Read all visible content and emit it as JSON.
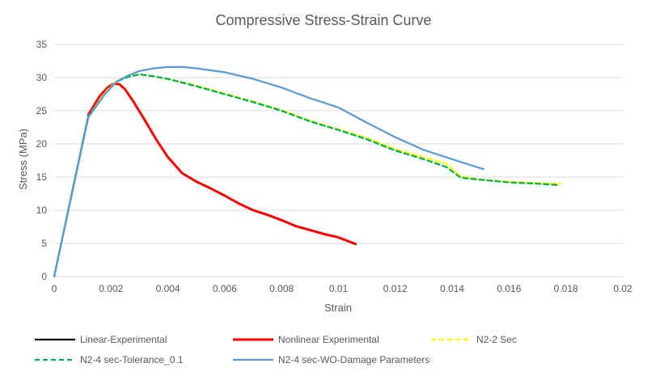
{
  "chart_data": {
    "type": "line",
    "title": "Compressive Stress-Strain Curve",
    "xlabel": "Strain",
    "ylabel": "Stress (MPa)",
    "xlim": [
      0,
      0.02
    ],
    "ylim": [
      0,
      35
    ],
    "grid": true,
    "legend_position": "bottom",
    "x_ticks": [
      0,
      0.002,
      0.004,
      0.006,
      0.008,
      0.01,
      0.012,
      0.014,
      0.016,
      0.018,
      0.02
    ],
    "x_tick_labels": [
      "0",
      "0.002",
      "0.004",
      "0.006",
      "0.008",
      "0.01",
      "0.012",
      "0.014",
      "0.016",
      "0.018",
      "0.02"
    ],
    "y_ticks": [
      0,
      5,
      10,
      15,
      20,
      25,
      30,
      35
    ],
    "y_tick_labels": [
      "0",
      "5",
      "10",
      "15",
      "20",
      "25",
      "30",
      "35"
    ],
    "series": [
      {
        "name": "Linear-Experimental",
        "color": "#000000",
        "style": "solid",
        "x": [
          0,
          0.0012
        ],
        "y": [
          0,
          24.2
        ]
      },
      {
        "name": "Nonlinear Experimental",
        "color": "#ff0000",
        "style": "solid",
        "x": [
          0.0012,
          0.0016,
          0.0019,
          0.0021,
          0.0023,
          0.0025,
          0.0028,
          0.0032,
          0.0036,
          0.004,
          0.0045,
          0.005,
          0.0055,
          0.006,
          0.0065,
          0.007,
          0.0075,
          0.008,
          0.0085,
          0.009,
          0.0095,
          0.01,
          0.0106
        ],
        "y": [
          24.4,
          27.2,
          28.6,
          29.1,
          29.0,
          28.2,
          26.3,
          23.5,
          20.6,
          18.0,
          15.6,
          14.3,
          13.3,
          12.2,
          11.0,
          10.0,
          9.3,
          8.5,
          7.6,
          7.0,
          6.4,
          5.9,
          4.9
        ]
      },
      {
        "name": "N2-2 Sec",
        "color": "#ffff00",
        "style": "dashed",
        "x": [
          0,
          0.0012,
          0.0018,
          0.0022,
          0.0026,
          0.003,
          0.0035,
          0.004,
          0.005,
          0.006,
          0.007,
          0.008,
          0.009,
          0.01,
          0.011,
          0.012,
          0.013,
          0.0138,
          0.0143,
          0.015,
          0.016,
          0.017,
          0.0178
        ],
        "y": [
          0,
          24.2,
          27.8,
          29.5,
          30.2,
          30.5,
          30.2,
          29.8,
          28.8,
          27.6,
          26.4,
          25.1,
          23.5,
          22.2,
          20.9,
          19.2,
          18.0,
          17.0,
          15.1,
          14.6,
          14.3,
          14.1,
          14.0
        ]
      },
      {
        "name": "N2-4 sec-Tolerance_0.1",
        "color": "#00b050",
        "style": "dashed",
        "x": [
          0,
          0.0012,
          0.0018,
          0.0022,
          0.0026,
          0.003,
          0.0035,
          0.004,
          0.005,
          0.006,
          0.007,
          0.008,
          0.009,
          0.01,
          0.011,
          0.012,
          0.013,
          0.0138,
          0.0143,
          0.015,
          0.016,
          0.017,
          0.0177
        ],
        "y": [
          0,
          24.2,
          27.6,
          29.4,
          30.1,
          30.5,
          30.2,
          29.8,
          28.7,
          27.5,
          26.3,
          25.0,
          23.4,
          22.1,
          20.7,
          19.0,
          17.7,
          16.5,
          14.9,
          14.6,
          14.2,
          14.0,
          13.8
        ]
      },
      {
        "name": "N2-4 sec-WO-Damage Parameters",
        "color": "#5b9bd5",
        "style": "solid",
        "x": [
          0,
          0.0012,
          0.0018,
          0.0022,
          0.0026,
          0.003,
          0.0035,
          0.004,
          0.0045,
          0.005,
          0.006,
          0.007,
          0.008,
          0.009,
          0.01,
          0.011,
          0.012,
          0.013,
          0.014,
          0.0151
        ],
        "y": [
          0,
          24.0,
          27.6,
          29.4,
          30.3,
          31.0,
          31.4,
          31.6,
          31.6,
          31.4,
          30.8,
          29.8,
          28.5,
          26.9,
          25.5,
          23.2,
          21.0,
          19.1,
          17.7,
          16.2
        ]
      }
    ]
  }
}
